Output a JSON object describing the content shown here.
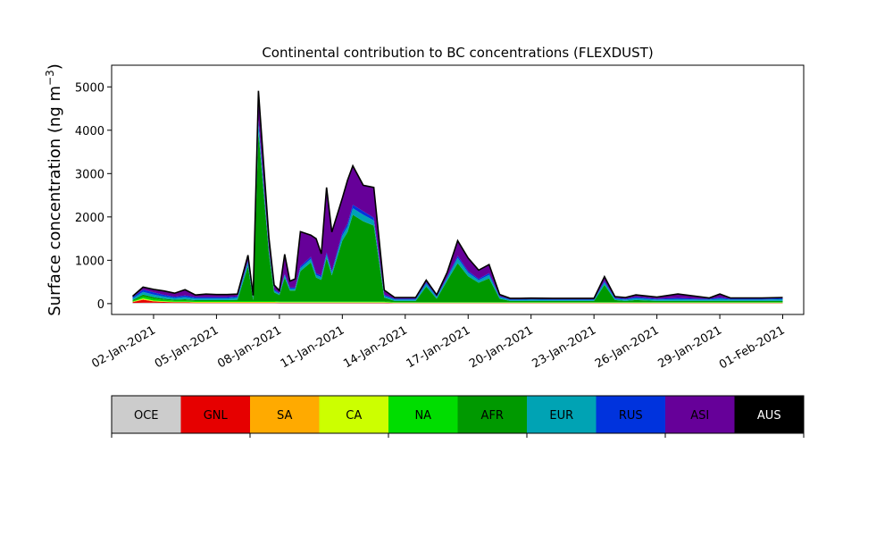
{
  "chart_data": {
    "type": "area",
    "stacked": true,
    "title": "Continental contribution to BC concentrations (FLEXDUST)",
    "ylabel": "Surface concentration (ng m",
    "ylabel_sup": "−3",
    "ylabel_close": ")",
    "xlabel": "",
    "ylim": [
      -250,
      5500
    ],
    "xlim": [
      "2020-12-31",
      "2021-02-02"
    ],
    "grid": false,
    "yticks": [
      0,
      1000,
      2000,
      3000,
      4000,
      5000
    ],
    "xtick_dates": [
      "2021-01-02",
      "2021-01-05",
      "2021-01-08",
      "2021-01-11",
      "2021-01-14",
      "2021-01-17",
      "2021-01-20",
      "2021-01-23",
      "2021-01-26",
      "2021-01-29",
      "2021-02-01"
    ],
    "xtick_labels": [
      "02-Jan-2021",
      "05-Jan-2021",
      "08-Jan-2021",
      "11-Jan-2021",
      "14-Jan-2021",
      "17-Jan-2021",
      "20-Jan-2021",
      "23-Jan-2021",
      "26-Jan-2021",
      "29-Jan-2021",
      "01-Feb-2021"
    ],
    "x": [
      "2021-01-01",
      "2021-01-01 12:00",
      "2021-01-02",
      "2021-01-02 12:00",
      "2021-01-03",
      "2021-01-03 12:00",
      "2021-01-04",
      "2021-01-04 12:00",
      "2021-01-05",
      "2021-01-05 12:00",
      "2021-01-06",
      "2021-01-06 12:00",
      "2021-01-06 18:00",
      "2021-01-07",
      "2021-01-07 12:00",
      "2021-01-07 18:00",
      "2021-01-08",
      "2021-01-08 06:00",
      "2021-01-08 12:00",
      "2021-01-08 18:00",
      "2021-01-09",
      "2021-01-09 12:00",
      "2021-01-09 18:00",
      "2021-01-10",
      "2021-01-10 06:00",
      "2021-01-10 12:00",
      "2021-01-11",
      "2021-01-11 06:00",
      "2021-01-11 12:00",
      "2021-01-12",
      "2021-01-12 12:00",
      "2021-01-13",
      "2021-01-13 12:00",
      "2021-01-14",
      "2021-01-14 12:00",
      "2021-01-15",
      "2021-01-15 12:00",
      "2021-01-16",
      "2021-01-16 12:00",
      "2021-01-17",
      "2021-01-17 12:00",
      "2021-01-18",
      "2021-01-18 12:00",
      "2021-01-19",
      "2021-01-19 12:00",
      "2021-01-20",
      "2021-01-21",
      "2021-01-22",
      "2021-01-22 12:00",
      "2021-01-23",
      "2021-01-23 12:00",
      "2021-01-24",
      "2021-01-24 12:00",
      "2021-01-25",
      "2021-01-26",
      "2021-01-27",
      "2021-01-28",
      "2021-01-28 12:00",
      "2021-01-29",
      "2021-01-29 12:00",
      "2021-01-30",
      "2021-01-31",
      "2021-02-01"
    ],
    "series": [
      {
        "name": "OCE",
        "color": "#cccccc",
        "values": [
          15,
          20,
          20,
          18,
          15,
          15,
          12,
          12,
          12,
          12,
          12,
          12,
          12,
          12,
          12,
          12,
          10,
          10,
          10,
          10,
          10,
          10,
          10,
          10,
          10,
          10,
          10,
          10,
          10,
          10,
          10,
          10,
          8,
          8,
          8,
          8,
          8,
          8,
          8,
          8,
          8,
          8,
          8,
          8,
          8,
          8,
          8,
          8,
          8,
          8,
          8,
          8,
          8,
          8,
          8,
          8,
          8,
          8,
          8,
          8,
          8,
          8,
          8
        ]
      },
      {
        "name": "GNL",
        "color": "#e60000",
        "values": [
          20,
          70,
          30,
          20,
          15,
          15,
          12,
          12,
          12,
          12,
          12,
          12,
          12,
          12,
          12,
          12,
          10,
          10,
          10,
          10,
          10,
          10,
          10,
          10,
          10,
          10,
          10,
          10,
          10,
          10,
          10,
          10,
          6,
          6,
          6,
          6,
          6,
          6,
          6,
          6,
          6,
          6,
          6,
          6,
          6,
          6,
          6,
          6,
          6,
          6,
          6,
          6,
          6,
          6,
          6,
          6,
          6,
          6,
          6,
          6,
          6,
          6,
          6
        ]
      },
      {
        "name": "SA",
        "color": "#ffaa00",
        "values": [
          5,
          10,
          5,
          5,
          5,
          5,
          5,
          5,
          5,
          5,
          5,
          5,
          5,
          5,
          5,
          5,
          5,
          5,
          5,
          5,
          5,
          5,
          5,
          5,
          5,
          5,
          5,
          5,
          5,
          5,
          5,
          5,
          3,
          3,
          3,
          3,
          3,
          3,
          3,
          3,
          3,
          3,
          3,
          3,
          3,
          3,
          3,
          3,
          3,
          3,
          3,
          3,
          3,
          3,
          3,
          3,
          3,
          3,
          3,
          3,
          3,
          3,
          3
        ]
      },
      {
        "name": "CA",
        "color": "#ccff00",
        "values": [
          5,
          20,
          15,
          10,
          10,
          10,
          10,
          10,
          10,
          10,
          10,
          10,
          10,
          10,
          10,
          10,
          10,
          10,
          10,
          10,
          10,
          10,
          10,
          10,
          10,
          10,
          10,
          10,
          10,
          10,
          10,
          10,
          5,
          5,
          5,
          5,
          5,
          5,
          5,
          5,
          5,
          5,
          5,
          5,
          5,
          5,
          5,
          5,
          5,
          5,
          5,
          5,
          5,
          5,
          5,
          5,
          5,
          5,
          5,
          5,
          5,
          5,
          5
        ]
      },
      {
        "name": "NA",
        "color": "#00dd00",
        "values": [
          15,
          40,
          40,
          30,
          25,
          25,
          20,
          20,
          20,
          20,
          20,
          20,
          20,
          20,
          20,
          20,
          15,
          15,
          15,
          15,
          15,
          15,
          15,
          15,
          15,
          15,
          15,
          15,
          15,
          15,
          15,
          15,
          10,
          10,
          10,
          10,
          10,
          10,
          10,
          10,
          10,
          10,
          10,
          10,
          10,
          10,
          10,
          10,
          10,
          10,
          10,
          10,
          10,
          10,
          10,
          10,
          10,
          10,
          10,
          10,
          10,
          10,
          10
        ]
      },
      {
        "name": "AFR",
        "color": "#009900",
        "values": [
          20,
          50,
          40,
          30,
          20,
          30,
          20,
          20,
          20,
          20,
          30,
          800,
          20,
          3900,
          1100,
          200,
          150,
          550,
          250,
          250,
          700,
          900,
          550,
          500,
          1000,
          600,
          1400,
          1600,
          2000,
          1850,
          1750,
          90,
          30,
          30,
          30,
          360,
          80,
          500,
          900,
          600,
          450,
          550,
          80,
          30,
          30,
          30,
          30,
          30,
          30,
          30,
          400,
          50,
          30,
          50,
          30,
          30,
          30,
          30,
          30,
          30,
          30,
          30,
          30
        ]
      },
      {
        "name": "EUR",
        "color": "#00a3b4",
        "values": [
          40,
          60,
          60,
          50,
          40,
          50,
          40,
          40,
          40,
          40,
          50,
          90,
          40,
          200,
          80,
          40,
          30,
          60,
          40,
          40,
          70,
          80,
          60,
          60,
          80,
          60,
          120,
          130,
          150,
          150,
          120,
          40,
          30,
          30,
          30,
          70,
          40,
          60,
          120,
          80,
          60,
          80,
          40,
          25,
          25,
          30,
          25,
          25,
          25,
          25,
          60,
          30,
          30,
          40,
          30,
          40,
          30,
          30,
          50,
          30,
          30,
          30,
          40
        ]
      },
      {
        "name": "RUS",
        "color": "#0033dd",
        "values": [
          30,
          50,
          50,
          40,
          30,
          40,
          30,
          30,
          30,
          30,
          30,
          40,
          30,
          100,
          40,
          30,
          20,
          30,
          30,
          30,
          40,
          50,
          40,
          40,
          50,
          40,
          60,
          70,
          80,
          80,
          60,
          30,
          20,
          20,
          20,
          30,
          20,
          30,
          50,
          40,
          30,
          40,
          20,
          15,
          15,
          15,
          15,
          15,
          15,
          15,
          30,
          20,
          20,
          30,
          20,
          30,
          20,
          20,
          30,
          20,
          20,
          20,
          20
        ]
      },
      {
        "name": "ASI",
        "color": "#660099",
        "values": [
          20,
          60,
          70,
          90,
          80,
          130,
          50,
          70,
          60,
          60,
          50,
          130,
          40,
          650,
          250,
          100,
          50,
          450,
          150,
          200,
          800,
          500,
          800,
          500,
          1500,
          900,
          800,
          1000,
          900,
          600,
          700,
          100,
          30,
          30,
          30,
          50,
          30,
          100,
          350,
          300,
          200,
          200,
          40,
          20,
          20,
          20,
          20,
          20,
          20,
          20,
          100,
          30,
          30,
          50,
          40,
          90,
          50,
          20,
          80,
          20,
          20,
          20,
          20
        ]
      },
      {
        "name": "AUS",
        "color": "#000000",
        "values": [
          0,
          0,
          0,
          0,
          0,
          0,
          0,
          0,
          0,
          0,
          0,
          0,
          0,
          0,
          0,
          0,
          0,
          0,
          0,
          0,
          0,
          0,
          0,
          0,
          0,
          0,
          0,
          0,
          0,
          0,
          0,
          0,
          0,
          0,
          0,
          0,
          0,
          0,
          0,
          0,
          0,
          0,
          0,
          0,
          0,
          0,
          0,
          0,
          0,
          0,
          0,
          0,
          0,
          0,
          0,
          0,
          0,
          0,
          0,
          0,
          0,
          0,
          0
        ]
      }
    ],
    "legend_placement": "bottom"
  }
}
